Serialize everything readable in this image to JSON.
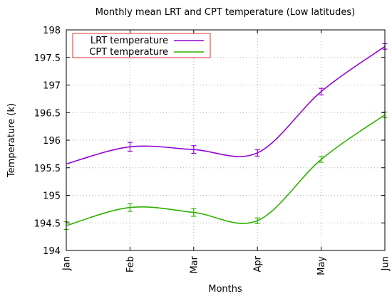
{
  "chart_data": {
    "type": "line",
    "title": "Monthly mean LRT and CPT temperature (Low latitudes)",
    "xlabel": "Months",
    "ylabel": "Temperature (k)",
    "categories": [
      "Jan",
      "Feb",
      "Mar",
      "Apr",
      "May",
      "Jun"
    ],
    "ylim": [
      194,
      198
    ],
    "yticks": [
      194,
      194.5,
      195,
      195.5,
      196,
      196.5,
      197,
      197.5,
      198
    ],
    "ytick_labels": [
      "194",
      "194.5",
      "195",
      "195.5",
      "196",
      "196.5",
      "197",
      "197.5",
      "198"
    ],
    "grid": true,
    "legend_position": "top-left",
    "series": [
      {
        "name": "LRT temperature",
        "color": "#9400d3",
        "values": [
          195.57,
          195.88,
          195.83,
          195.77,
          196.88,
          197.7
        ],
        "errors": [
          0.0,
          0.08,
          0.07,
          0.06,
          0.06,
          0.05
        ]
      },
      {
        "name": "CPT temperature",
        "color": "#2fb100",
        "values": [
          194.45,
          194.78,
          194.69,
          194.54,
          195.65,
          196.46
        ],
        "errors": [
          0.07,
          0.07,
          0.07,
          0.05,
          0.05,
          0.05
        ]
      }
    ]
  }
}
